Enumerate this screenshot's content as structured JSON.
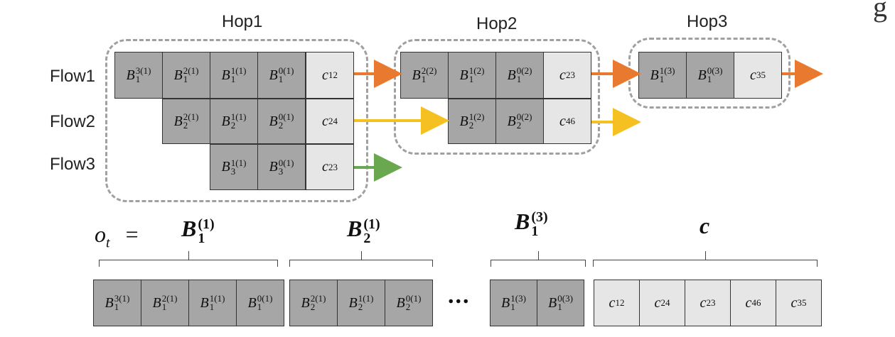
{
  "hops": [
    "Hop1",
    "Hop2",
    "Hop3"
  ],
  "flows": [
    "Flow1",
    "Flow2",
    "Flow3"
  ],
  "hop1": {
    "flow1": [
      {
        "base": "B",
        "sup": "3(1)",
        "sub": "1"
      },
      {
        "base": "B",
        "sup": "2(1)",
        "sub": "1"
      },
      {
        "base": "B",
        "sup": "1(1)",
        "sub": "1"
      },
      {
        "base": "B",
        "sup": "0(1)",
        "sub": "1"
      },
      {
        "base": "c",
        "sub": "12"
      }
    ],
    "flow2": [
      {
        "base": "B",
        "sup": "2(1)",
        "sub": "2"
      },
      {
        "base": "B",
        "sup": "1(1)",
        "sub": "2"
      },
      {
        "base": "B",
        "sup": "0(1)",
        "sub": "2"
      },
      {
        "base": "c",
        "sub": "24"
      }
    ],
    "flow3": [
      {
        "base": "B",
        "sup": "1(1)",
        "sub": "3"
      },
      {
        "base": "B",
        "sup": "0(1)",
        "sub": "3"
      },
      {
        "base": "c",
        "sub": "23"
      }
    ]
  },
  "hop2": {
    "flow1": [
      {
        "base": "B",
        "sup": "2(2)",
        "sub": "1"
      },
      {
        "base": "B",
        "sup": "1(2)",
        "sub": "1"
      },
      {
        "base": "B",
        "sup": "0(2)",
        "sub": "1"
      },
      {
        "base": "c",
        "sub": "23"
      }
    ],
    "flow2": [
      {
        "base": "B",
        "sup": "1(2)",
        "sub": "2"
      },
      {
        "base": "B",
        "sup": "0(2)",
        "sub": "2"
      },
      {
        "base": "c",
        "sub": "46"
      }
    ]
  },
  "hop3": {
    "flow1": [
      {
        "base": "B",
        "sup": "1(3)",
        "sub": "1"
      },
      {
        "base": "B",
        "sup": "0(3)",
        "sub": "1"
      },
      {
        "base": "c",
        "sub": "35"
      }
    ]
  },
  "observation": {
    "lhs": "o",
    "lhs_sub": "t",
    "equals": "=",
    "groups": [
      {
        "base": "B",
        "sup": "(1)",
        "sub": "1"
      },
      {
        "base": "B",
        "sup": "(1)",
        "sub": "2"
      },
      {
        "base": "B",
        "sup": "(3)",
        "sub": "1"
      },
      {
        "base": "c"
      }
    ],
    "ellipsis": "...",
    "vector_b1": [
      {
        "base": "B",
        "sup": "3(1)",
        "sub": "1"
      },
      {
        "base": "B",
        "sup": "2(1)",
        "sub": "1"
      },
      {
        "base": "B",
        "sup": "1(1)",
        "sub": "1"
      },
      {
        "base": "B",
        "sup": "0(1)",
        "sub": "1"
      }
    ],
    "vector_b2": [
      {
        "base": "B",
        "sup": "2(1)",
        "sub": "2"
      },
      {
        "base": "B",
        "sup": "1(1)",
        "sub": "2"
      },
      {
        "base": "B",
        "sup": "0(1)",
        "sub": "2"
      }
    ],
    "vector_b3": [
      {
        "base": "B",
        "sup": "1(3)",
        "sub": "1"
      },
      {
        "base": "B",
        "sup": "0(3)",
        "sub": "1"
      }
    ],
    "vector_c": [
      {
        "base": "c",
        "sub": "12"
      },
      {
        "base": "c",
        "sub": "24"
      },
      {
        "base": "c",
        "sub": "23"
      },
      {
        "base": "c",
        "sub": "46"
      },
      {
        "base": "c",
        "sub": "35"
      }
    ]
  },
  "colors": {
    "flow1_arrow": "#e8792f",
    "flow2_arrow": "#f5c022",
    "flow3_arrow": "#6aa84f",
    "buffer_cell": "#a6a6a6",
    "capacity_cell": "#e6e6e6",
    "dashed_border": "#a0a0a0"
  },
  "corner_glyph": "g"
}
